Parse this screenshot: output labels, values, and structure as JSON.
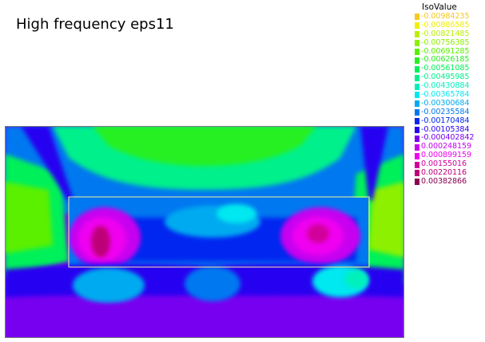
{
  "title": "High frequency eps11",
  "legend": {
    "header": "IsoValue",
    "entries": [
      {
        "label": "-0.00984235",
        "color": "#f7c81e"
      },
      {
        "label": "-0.00886585",
        "color": "#f0f000"
      },
      {
        "label": "-0.00821485",
        "color": "#bcf000"
      },
      {
        "label": "-0.00756385",
        "color": "#8cf000"
      },
      {
        "label": "-0.00691285",
        "color": "#5af000"
      },
      {
        "label": "-0.00626185",
        "color": "#28f020"
      },
      {
        "label": "-0.00561085",
        "color": "#00f05a"
      },
      {
        "label": "-0.00495985",
        "color": "#00f08c"
      },
      {
        "label": "-0.00430884",
        "color": "#00f0bc"
      },
      {
        "label": "-0.00365784",
        "color": "#00e8f0"
      },
      {
        "label": "-0.00300684",
        "color": "#00aaf0"
      },
      {
        "label": "-0.00235584",
        "color": "#0078f0"
      },
      {
        "label": "-0.00170484",
        "color": "#0028f0"
      },
      {
        "label": "-0.00105384",
        "color": "#2800f0"
      },
      {
        "label": "-0.000402842",
        "color": "#7800f0"
      },
      {
        "label": "0.000248159",
        "color": "#c800f0"
      },
      {
        "label": "0.000899159",
        "color": "#f000f0"
      },
      {
        "label": "0.00155016",
        "color": "#d2009b"
      },
      {
        "label": "0.00220116",
        "color": "#be0078"
      },
      {
        "label": "0.00382866",
        "color": "#8c0050"
      }
    ]
  },
  "chart_data": {
    "type": "heatmap",
    "title": "High frequency eps11",
    "legend_title": "IsoValue",
    "levels": [
      -0.00984235,
      -0.00886585,
      -0.00821485,
      -0.00756385,
      -0.00691285,
      -0.00626185,
      -0.00561085,
      -0.00495985,
      -0.00430884,
      -0.00365784,
      -0.00300684,
      -0.00235584,
      -0.00170484,
      -0.00105384,
      -0.000402842,
      0.000248159,
      0.000899159,
      0.00155016,
      0.00220116,
      0.00382866
    ],
    "legend_placement": "top-right",
    "grid": false
  }
}
